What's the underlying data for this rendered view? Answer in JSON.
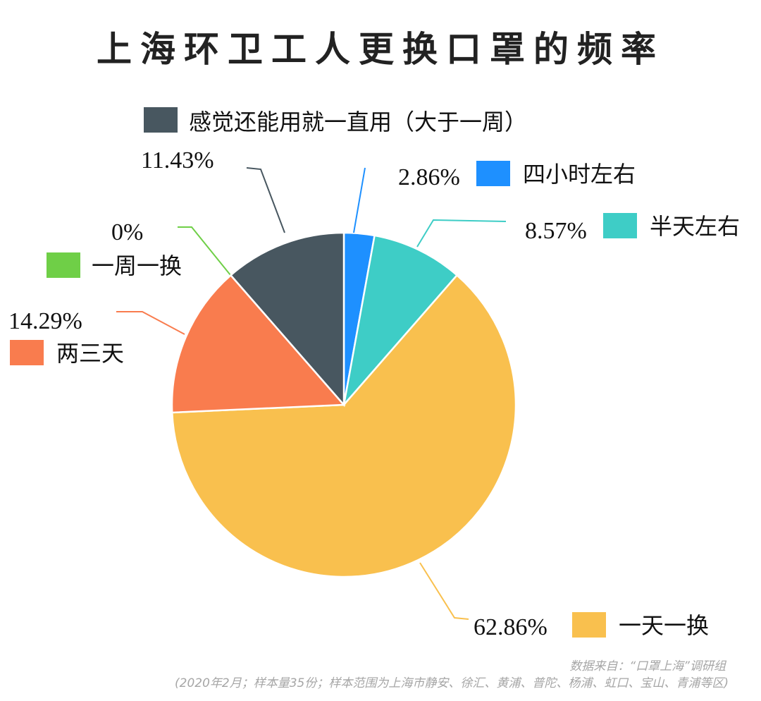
{
  "title": "上海环卫工人更换口罩的频率",
  "source": "数据来自：“口罩上海”调研组",
  "note": "(2020年2月；样本量35份；样本范围为上海市静安、徐汇、黄浦、普陀、杨浦、虹口、宝山、青浦等区)",
  "chart_data": {
    "type": "pie",
    "title": "上海环卫工人更换口罩的频率",
    "legend_placement": "outside labels next to slices",
    "slices": [
      {
        "name": "四小时左右",
        "value": 2.86,
        "label": "2.86%",
        "color": "#1e90ff"
      },
      {
        "name": "半天左右",
        "value": 8.57,
        "label": "8.57%",
        "color": "#3ecdc6"
      },
      {
        "name": "一天一换",
        "value": 62.86,
        "label": "62.86%",
        "color": "#f9c04e"
      },
      {
        "name": "两三天",
        "value": 14.29,
        "label": "14.29%",
        "color": "#f97c4e"
      },
      {
        "name": "一周一换",
        "value": 0,
        "label": "0%",
        "color": "#6fcf47"
      },
      {
        "name": "感觉还能用就一直用（大于一周）",
        "value": 11.43,
        "label": "11.43%",
        "color": "#485760"
      }
    ]
  }
}
